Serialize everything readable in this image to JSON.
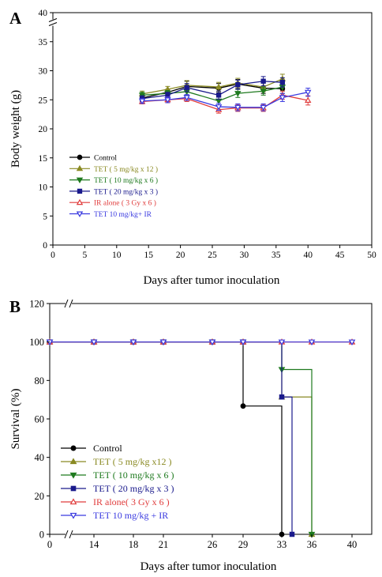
{
  "chart_data": [
    {
      "panel": "A",
      "type": "line",
      "xlabel": "Days after tumor inoculation",
      "ylabel": "Body weight (g)",
      "xlim": [
        0,
        50
      ],
      "ylim": [
        0,
        40
      ],
      "x_ticks": [
        0,
        5,
        10,
        15,
        20,
        25,
        30,
        35,
        40,
        45,
        50
      ],
      "y_ticks": [
        0,
        5,
        10,
        15,
        20,
        25,
        30,
        35,
        40
      ],
      "axis_break": "y",
      "legend_position": "lower-left",
      "grid": false,
      "series": [
        {
          "name": "Control",
          "color": "#000000",
          "marker": "circle",
          "x": [
            14,
            18,
            21,
            26,
            29,
            33,
            36
          ],
          "y": [
            25.3,
            26.3,
            27.3,
            27.0,
            27.7,
            27.0,
            26.9
          ],
          "err": [
            0.5,
            0.5,
            0.9,
            0.8,
            0.8,
            0.9,
            0.8
          ]
        },
        {
          "name": "TET ( 5 mg/kg x 12 )",
          "color": "#8a8a23",
          "marker": "triangle-up",
          "x": [
            14,
            18,
            21,
            26,
            29,
            33,
            36
          ],
          "y": [
            26.0,
            26.8,
            27.5,
            27.2,
            27.9,
            27.2,
            28.6
          ],
          "err": [
            0.5,
            0.5,
            0.8,
            0.8,
            0.8,
            0.8,
            0.8
          ]
        },
        {
          "name": "TET ( 10 mg/kg x 6 )",
          "color": "#1f7a1f",
          "marker": "triangle-down",
          "x": [
            14,
            18,
            21,
            26,
            29,
            33,
            36
          ],
          "y": [
            25.8,
            26.1,
            26.4,
            24.8,
            26.1,
            26.5,
            27.2
          ],
          "err": [
            0.5,
            0.5,
            0.6,
            0.7,
            0.7,
            0.7,
            0.7
          ]
        },
        {
          "name": "TET ( 20 mg/kg x 3 )",
          "color": "#1a1a8c",
          "marker": "square",
          "x": [
            14,
            18,
            21,
            26,
            29,
            33,
            36
          ],
          "y": [
            25.2,
            25.8,
            27.1,
            25.8,
            27.6,
            28.2,
            28.0
          ],
          "err": [
            0.5,
            0.5,
            0.7,
            0.7,
            0.8,
            0.8,
            0.8
          ]
        },
        {
          "name": "IR alone ( 3 Gy x 6 )",
          "color": "#e03c3c",
          "marker": "triangle-up-open",
          "x": [
            14,
            18,
            21,
            26,
            29,
            33,
            36,
            40
          ],
          "y": [
            24.7,
            25.0,
            25.2,
            23.3,
            23.6,
            23.6,
            25.8,
            24.9
          ],
          "err": [
            0.4,
            0.5,
            0.5,
            0.6,
            0.6,
            0.6,
            0.7,
            0.8
          ]
        },
        {
          "name": "TET 10 mg/kg+ IR",
          "color": "#3a3ae0",
          "marker": "triangle-down-open",
          "x": [
            14,
            18,
            21,
            26,
            29,
            33,
            36,
            40
          ],
          "y": [
            24.8,
            25.0,
            25.4,
            23.8,
            23.7,
            23.7,
            25.4,
            26.3
          ],
          "err": [
            0.4,
            0.5,
            0.5,
            0.6,
            0.6,
            0.6,
            0.7,
            0.7
          ]
        }
      ]
    },
    {
      "panel": "B",
      "type": "line",
      "step": true,
      "xlabel": "Days after tumor inoculation",
      "ylabel": "Survival (%)",
      "ylim": [
        0,
        120
      ],
      "x_ticks": [
        0,
        14,
        18,
        21,
        26,
        29,
        33,
        36,
        40
      ],
      "y_ticks": [
        0,
        20,
        40,
        60,
        80,
        100,
        120
      ],
      "axis_break": "x",
      "legend_position": "lower-left",
      "grid": false,
      "series": [
        {
          "name": "Control",
          "color": "#000000",
          "marker": "circle",
          "x": [
            0,
            14,
            18,
            21,
            26,
            29,
            33
          ],
          "y": [
            100,
            100,
            100,
            100,
            100,
            66.7,
            0
          ]
        },
        {
          "name": "TET ( 5 mg/kg x12 )",
          "color": "#8a8a23",
          "marker": "triangle-up",
          "x": [
            0,
            14,
            18,
            21,
            26,
            29,
            33,
            36
          ],
          "y": [
            100,
            100,
            100,
            100,
            100,
            100,
            71.4,
            0
          ]
        },
        {
          "name": "TET ( 10 mg/kg x 6 )",
          "color": "#1f7a1f",
          "marker": "triangle-down",
          "x": [
            0,
            14,
            18,
            21,
            26,
            29,
            33,
            36
          ],
          "y": [
            100,
            100,
            100,
            100,
            100,
            100,
            85.7,
            0
          ]
        },
        {
          "name": "TET ( 20 mg/kg x 3 )",
          "color": "#1a1a8c",
          "marker": "square",
          "x": [
            0,
            14,
            18,
            21,
            26,
            29,
            33,
            34
          ],
          "y": [
            100,
            100,
            100,
            100,
            100,
            100,
            71.4,
            0
          ]
        },
        {
          "name": "IR alone( 3 Gy x 6 )",
          "color": "#e03c3c",
          "marker": "triangle-up-open",
          "x": [
            0,
            14,
            18,
            21,
            26,
            29,
            33,
            36,
            40
          ],
          "y": [
            100,
            100,
            100,
            100,
            100,
            100,
            100,
            100,
            100
          ]
        },
        {
          "name": "TET 10 mg/kg + IR",
          "color": "#3a3ae0",
          "marker": "triangle-down-open",
          "x": [
            0,
            14,
            18,
            21,
            26,
            29,
            33,
            36,
            40
          ],
          "y": [
            100,
            100,
            100,
            100,
            100,
            100,
            100,
            100,
            100
          ]
        }
      ]
    }
  ]
}
